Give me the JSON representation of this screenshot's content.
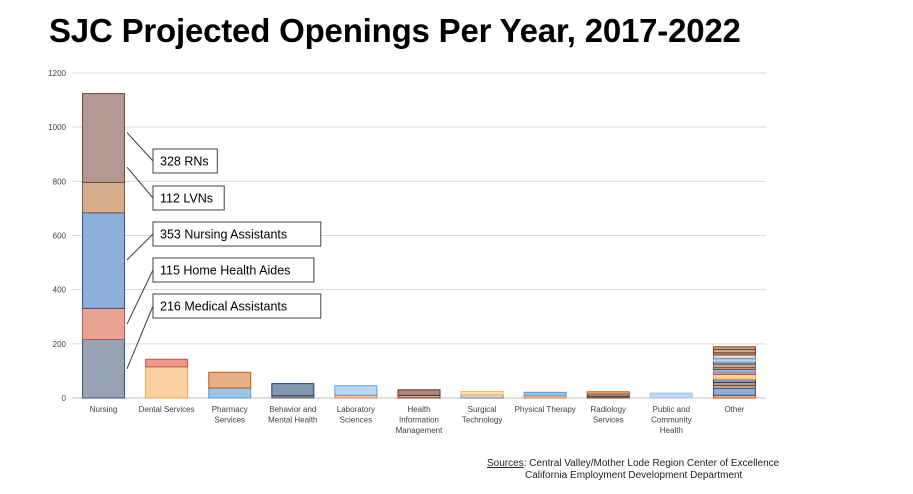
{
  "title": "SJC Projected Openings Per Year, 2017-2022",
  "sources": {
    "label": "Sources",
    "line1": ": Central Valley/Mother Lode Region Center of Excellence",
    "line2": "California Employment Development Department"
  },
  "chart_data": {
    "type": "bar",
    "stacked": true,
    "title": "SJC Projected Openings Per Year, 2017-2022",
    "xlabel": "",
    "ylabel": "",
    "ylim": [
      0,
      1200
    ],
    "yticks": [
      0,
      200,
      400,
      600,
      800,
      1000,
      1200
    ],
    "grid": true,
    "legend": "none",
    "categories": [
      [
        "Nursing"
      ],
      [
        "Dental Services"
      ],
      [
        "Pharmacy",
        "Services"
      ],
      [
        "Behavior and",
        "Mental Health"
      ],
      [
        "Laboratory",
        "Sciences"
      ],
      [
        "Health",
        "Information",
        "Management"
      ],
      [
        "Surgical",
        "Technology"
      ],
      [
        "Physical Therapy"
      ],
      [
        "Radiology",
        "Services"
      ],
      [
        "Public and",
        "Community",
        "Health"
      ],
      [
        "Other"
      ]
    ],
    "stacks": [
      [
        {
          "value": 216,
          "color": "#97A3B1",
          "edge": "#2F5597"
        },
        {
          "value": 115,
          "color": "#E7A493",
          "edge": "#C0504D"
        },
        {
          "value": 353,
          "color": "#8EAFD9",
          "edge": "#2F5597"
        },
        {
          "value": 112,
          "color": "#D6AE8E",
          "edge": "#8A5A3B"
        },
        {
          "value": 328,
          "color": "#B29994",
          "edge": "#7A4637"
        }
      ],
      [
        {
          "value": 115,
          "color": "#FAD1A0",
          "edge": "#F1A340"
        },
        {
          "value": 28,
          "color": "#E9988A",
          "edge": "#C0504D"
        }
      ],
      [
        {
          "value": 37,
          "color": "#9DC3E6",
          "edge": "#5B9BD5"
        },
        {
          "value": 58,
          "color": "#E8B088",
          "edge": "#C55A11"
        }
      ],
      [
        {
          "value": 8,
          "color": "#A5A5A5",
          "edge": "#595959"
        },
        {
          "value": 45,
          "color": "#8497B0",
          "edge": "#1F3864"
        }
      ],
      [
        {
          "value": 10,
          "color": "#F8CBAD",
          "edge": "#ED7D31"
        },
        {
          "value": 35,
          "color": "#BDD7EE",
          "edge": "#5B9BD5"
        }
      ],
      [
        {
          "value": 10,
          "color": "#C9A999",
          "edge": "#843C0C"
        },
        {
          "value": 20,
          "color": "#A98B84",
          "edge": "#5E2E21"
        }
      ],
      [
        {
          "value": 12,
          "color": "#D9D9D9",
          "edge": "#7F7F7F"
        },
        {
          "value": 12,
          "color": "#FFE0A6",
          "edge": "#F4B183"
        }
      ],
      [
        {
          "value": 8,
          "color": "#F8CBAD",
          "edge": "#ED7D31"
        },
        {
          "value": 13,
          "color": "#9DC3E6",
          "edge": "#5B9BD5"
        }
      ],
      [
        {
          "value": 5,
          "color": "#C9A999",
          "edge": "#843C0C"
        },
        {
          "value": 10,
          "color": "#8C8C8C",
          "edge": "#404040"
        },
        {
          "value": 8,
          "color": "#E8B088",
          "edge": "#C55A11"
        }
      ],
      [
        {
          "value": 18,
          "color": "#BDD7EE",
          "edge": "#9DC3E6"
        }
      ],
      [
        {
          "value": 10,
          "color": "#F4B183",
          "edge": "#C55A11"
        },
        {
          "value": 25,
          "color": "#8EAFD9",
          "edge": "#2F5597"
        },
        {
          "value": 12,
          "color": "#A5A5A5",
          "edge": "#595959"
        },
        {
          "value": 10,
          "color": "#C9A999",
          "edge": "#843C0C"
        },
        {
          "value": 12,
          "color": "#8497B0",
          "edge": "#1F3864"
        },
        {
          "value": 18,
          "color": "#FAD1A0",
          "edge": "#F1A340"
        },
        {
          "value": 8,
          "color": "#E9988A",
          "edge": "#C0504D"
        },
        {
          "value": 10,
          "color": "#9DC3E6",
          "edge": "#5B9BD5"
        },
        {
          "value": 8,
          "color": "#B29994",
          "edge": "#7A4637"
        },
        {
          "value": 12,
          "color": "#D6AE8E",
          "edge": "#8A5A3B"
        },
        {
          "value": 10,
          "color": "#97A3B1",
          "edge": "#2F5597"
        },
        {
          "value": 10,
          "color": "#BDD7EE",
          "edge": "#9DC3E6"
        },
        {
          "value": 14,
          "color": "#D9D9D9",
          "edge": "#7F7F7F"
        },
        {
          "value": 8,
          "color": "#B29994",
          "edge": "#7A4637"
        },
        {
          "value": 12,
          "color": "#C9A999",
          "edge": "#843C0C"
        },
        {
          "value": 10,
          "color": "#C2A28F",
          "edge": "#843C0C"
        }
      ]
    ],
    "annotations": [
      {
        "text": "328 RNs",
        "value": 980
      },
      {
        "text": "112 LVNs",
        "value": 852
      },
      {
        "text": "353 Nursing Assistants",
        "value": 510
      },
      {
        "text": "115 Home Health Aides",
        "value": 273
      },
      {
        "text": "216 Medical Assistants",
        "value": 108
      }
    ]
  }
}
